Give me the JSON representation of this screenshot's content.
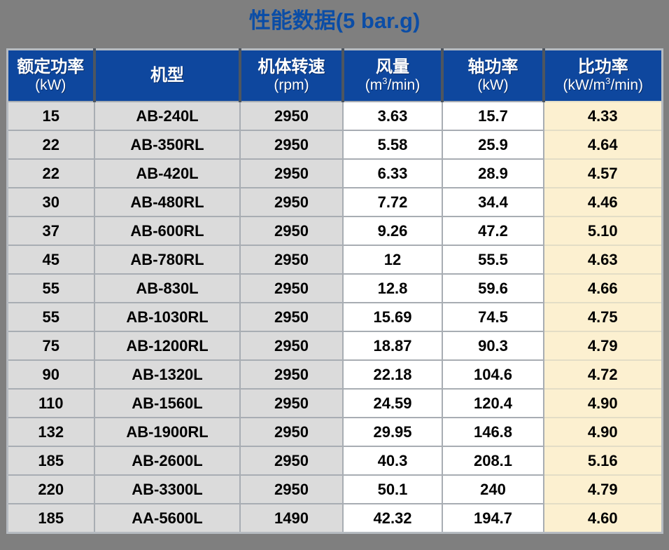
{
  "title": {
    "text": "性能数据(5 bar.g)"
  },
  "colors": {
    "page_background": "#7f7f7f",
    "title_text": "#0b4da6",
    "header_background": "#0e479e",
    "header_text": "#ffffff",
    "gray_cell": "#dbdbdb",
    "white_cell": "#ffffff",
    "cream_cell": "#fcf0d0"
  },
  "table": {
    "columns": [
      {
        "key": "rated-power",
        "title": "额定功率",
        "sub_prefix": "(kW)",
        "sub_sup": "",
        "sub_suffix": ""
      },
      {
        "key": "model",
        "title": "机型",
        "sub_prefix": "",
        "sub_sup": "",
        "sub_suffix": ""
      },
      {
        "key": "speed",
        "title": "机体转速",
        "sub_prefix": "(rpm)",
        "sub_sup": "",
        "sub_suffix": ""
      },
      {
        "key": "air-flow",
        "title": "风量",
        "sub_prefix": "(m",
        "sub_sup": "3",
        "sub_suffix": "/min)"
      },
      {
        "key": "shaft-power",
        "title": "轴功率",
        "sub_prefix": "(kW)",
        "sub_sup": "",
        "sub_suffix": ""
      },
      {
        "key": "specific-power",
        "title": "比功率",
        "sub_prefix": "(kW/m",
        "sub_sup": "3",
        "sub_suffix": "/min)"
      }
    ]
  },
  "chart_data": {
    "type": "table",
    "title": "性能数据(5 bar.g)",
    "columns": [
      "额定功率 (kW)",
      "机型",
      "机体转速 (rpm)",
      "风量 (m³/min)",
      "轴功率 (kW)",
      "比功率 (kW/m³/min)"
    ],
    "rows": [
      [
        "15",
        "AB-240L",
        "2950",
        "3.63",
        "15.7",
        "4.33"
      ],
      [
        "22",
        "AB-350RL",
        "2950",
        "5.58",
        "25.9",
        "4.64"
      ],
      [
        "22",
        "AB-420L",
        "2950",
        "6.33",
        "28.9",
        "4.57"
      ],
      [
        "30",
        "AB-480RL",
        "2950",
        "7.72",
        "34.4",
        "4.46"
      ],
      [
        "37",
        "AB-600RL",
        "2950",
        "9.26",
        "47.2",
        "5.10"
      ],
      [
        "45",
        "AB-780RL",
        "2950",
        "12",
        "55.5",
        "4.63"
      ],
      [
        "55",
        "AB-830L",
        "2950",
        "12.8",
        "59.6",
        "4.66"
      ],
      [
        "55",
        "AB-1030RL",
        "2950",
        "15.69",
        "74.5",
        "4.75"
      ],
      [
        "75",
        "AB-1200RL",
        "2950",
        "18.87",
        "90.3",
        "4.79"
      ],
      [
        "90",
        "AB-1320L",
        "2950",
        "22.18",
        "104.6",
        "4.72"
      ],
      [
        "110",
        "AB-1560L",
        "2950",
        "24.59",
        "120.4",
        "4.90"
      ],
      [
        "132",
        "AB-1900RL",
        "2950",
        "29.95",
        "146.8",
        "4.90"
      ],
      [
        "185",
        "AB-2600L",
        "2950",
        "40.3",
        "208.1",
        "5.16"
      ],
      [
        "220",
        "AB-3300L",
        "2950",
        "50.1",
        "240",
        "4.79"
      ],
      [
        "185",
        "AA-5600L",
        "1490",
        "42.32",
        "194.7",
        "4.60"
      ]
    ]
  }
}
